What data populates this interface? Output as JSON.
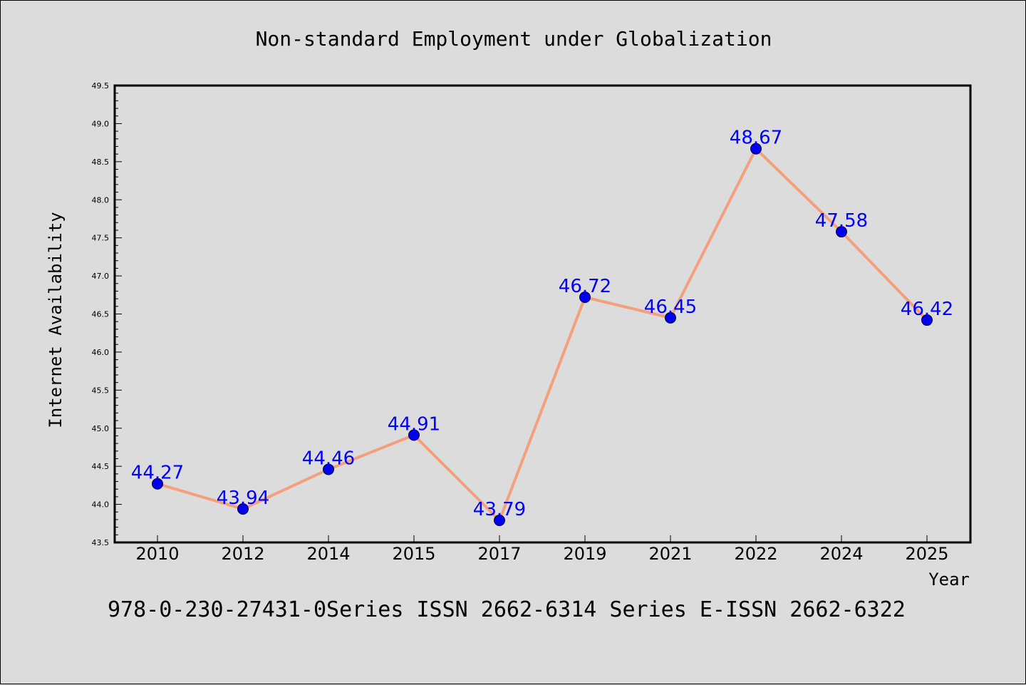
{
  "chart_data": {
    "type": "line",
    "title": "Non-standard Employment under Globalization",
    "xlabel": "Year",
    "ylabel": "Internet Availability",
    "categories": [
      "2010",
      "2012",
      "2014",
      "2015",
      "2017",
      "2019",
      "2021",
      "2022",
      "2024",
      "2025"
    ],
    "series": [
      {
        "values": [
          44.27,
          43.94,
          44.46,
          44.91,
          43.79,
          46.72,
          46.45,
          48.67,
          47.58,
          46.42
        ],
        "data_labels": [
          "44.27",
          "43.94",
          "44.46",
          "44.91",
          "43.79",
          "46.72",
          "46.45",
          "48.67",
          "47.58",
          "46.42"
        ],
        "line_color": "#f4a07c",
        "marker_color": "#0000ee",
        "label_color": "#0000ff"
      }
    ],
    "ylim": [
      43.5,
      49.5
    ],
    "yticks": [
      "43.5",
      "44.0",
      "44.5",
      "45.0",
      "45.5",
      "46.0",
      "46.5",
      "47.0",
      "47.5",
      "48.0",
      "48.5",
      "49.0",
      "49.5"
    ],
    "grid": false,
    "legend": "none"
  },
  "footer": "978-0-230-27431-0Series ISSN 2662-6314 Series E-ISSN 2662-6322"
}
